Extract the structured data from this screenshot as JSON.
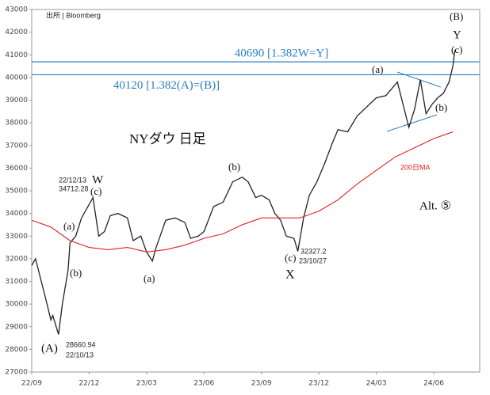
{
  "chart_data": {
    "type": "line",
    "xlim": [
      0,
      23.4
    ],
    "xticks": [
      {
        "value": 0,
        "label": "22/09"
      },
      {
        "value": 3,
        "label": "22/12"
      },
      {
        "value": 6,
        "label": "23/03"
      },
      {
        "value": 9,
        "label": "23/06"
      },
      {
        "value": 12,
        "label": "23/09"
      },
      {
        "value": 15,
        "label": "23/12"
      },
      {
        "value": 18,
        "label": "24/03"
      },
      {
        "value": 21,
        "label": "24/06"
      }
    ],
    "ylim": [
      27000,
      43000
    ],
    "yticks": [
      27000,
      28000,
      29000,
      30000,
      31000,
      32000,
      33000,
      34000,
      35000,
      36000,
      37000,
      38000,
      39000,
      40000,
      41000,
      42000,
      43000
    ],
    "series": [
      {
        "name": "NYダウ",
        "color": "#222222",
        "x": [
          0,
          0.2,
          0.5,
          0.8,
          1.0,
          1.1,
          1.4,
          1.6,
          1.9,
          2.0,
          2.3,
          2.6,
          3.0,
          3.2,
          3.5,
          3.8,
          4.1,
          4.5,
          5.0,
          5.3,
          5.7,
          6.0,
          6.3,
          6.5,
          7.0,
          7.5,
          8.0,
          8.3,
          8.7,
          9.0,
          9.5,
          10.0,
          10.5,
          11.0,
          11.3,
          11.7,
          12.0,
          12.4,
          12.7,
          13.0,
          13.3,
          13.7,
          13.9,
          14.2,
          14.5,
          14.9,
          15.3,
          15.7,
          16.0,
          16.5,
          17.0,
          17.5,
          18.0,
          18.5,
          18.8,
          19.1,
          19.4,
          19.7,
          20.0,
          20.3,
          20.6,
          20.9,
          21.2,
          21.5,
          21.8,
          22.0,
          22.1
        ],
        "values": [
          31700,
          32000,
          31000,
          30000,
          29300,
          29500,
          28660,
          30000,
          31500,
          32700,
          33000,
          33800,
          34400,
          34700,
          33000,
          33200,
          33900,
          34000,
          33800,
          32800,
          33000,
          32300,
          31900,
          32500,
          33700,
          33800,
          33600,
          32900,
          33000,
          33200,
          34300,
          34500,
          35400,
          35600,
          35400,
          34700,
          34800,
          34600,
          34000,
          33700,
          33000,
          32900,
          32327,
          33800,
          34800,
          35400,
          36200,
          37100,
          37700,
          37600,
          38300,
          38700,
          39100,
          39200,
          39500,
          39800,
          38800,
          37800,
          38600,
          39900,
          38400,
          38800,
          39100,
          39300,
          39800,
          40500,
          41200
        ]
      },
      {
        "name": "200日MA",
        "color": "#e02020",
        "x": [
          0,
          1,
          2,
          3,
          4,
          5,
          6,
          7,
          8,
          9,
          10,
          11,
          12,
          13,
          14,
          15,
          16,
          17,
          18,
          19,
          20,
          21,
          22
        ],
        "values": [
          33700,
          33400,
          32800,
          32500,
          32400,
          32500,
          32300,
          32400,
          32600,
          32900,
          33100,
          33500,
          33800,
          33800,
          33800,
          34100,
          34600,
          35300,
          35900,
          36500,
          36900,
          37300,
          37600
        ]
      }
    ],
    "levels": [
      {
        "value": 40690,
        "label": "40690 [1.382W=Y]"
      },
      {
        "value": 40120,
        "label": "40120 [1.382(A)=(B)]"
      }
    ],
    "title": "NYダウ 日足",
    "source": "出所 | Bloomberg",
    "annotations": [
      "(B)",
      "Y",
      "(c)",
      "(a)",
      "(b)",
      "W",
      "(c)",
      "22/12/13",
      "34712.28",
      "(a)",
      "(b)",
      "(a)",
      "(b)",
      "(c)",
      "X",
      "32327.2",
      "23/10/27",
      "(A)",
      "28660.94",
      "22/10/13",
      "Alt. ⑤"
    ]
  }
}
